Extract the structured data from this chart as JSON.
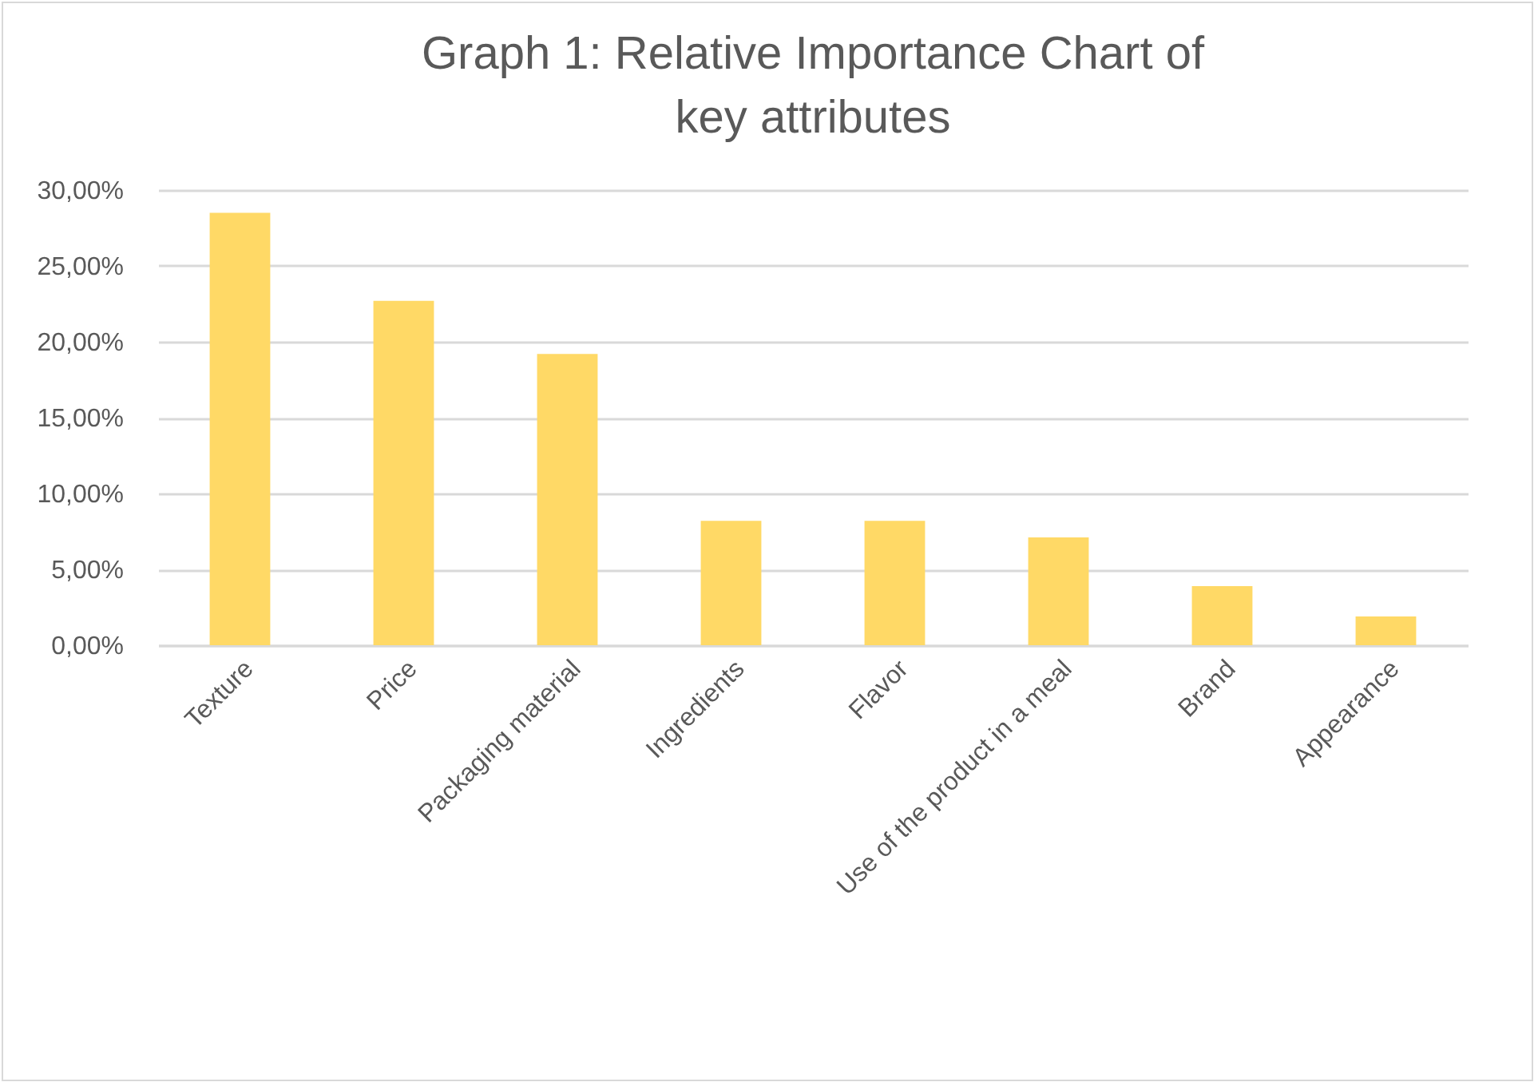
{
  "chart_data": {
    "type": "bar",
    "title": "Graph 1: Relative Importance Chart of key attributes",
    "categories": [
      "Texture",
      "Price",
      "Packaging material",
      "Ingredients",
      "Flavor",
      "Use of the product in a meal",
      "Brand",
      "Appearance"
    ],
    "values": [
      28.5,
      22.7,
      19.2,
      8.2,
      8.2,
      7.1,
      3.9,
      1.9
    ],
    "color": "#ffd966",
    "ylim": [
      0,
      30
    ],
    "yticks": [
      {
        "value": 0,
        "label": "0,00%"
      },
      {
        "value": 5,
        "label": "5,00%"
      },
      {
        "value": 10,
        "label": "10,00%"
      },
      {
        "value": 15,
        "label": "15,00%"
      },
      {
        "value": 20,
        "label": "20,00%"
      },
      {
        "value": 25,
        "label": "25,00%"
      },
      {
        "value": 30,
        "label": "30,00%"
      }
    ],
    "grid": "y"
  }
}
